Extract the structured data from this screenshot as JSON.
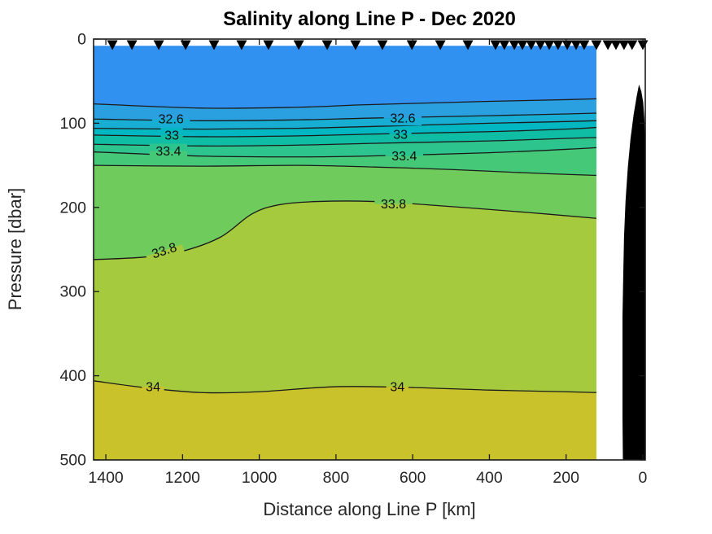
{
  "chart_data": {
    "type": "filled_contour_section",
    "title": "Salinity along Line P - Dec 2020",
    "xlabel": "Distance along Line P [km]",
    "ylabel": "Pressure [dbar]",
    "value_label": "Salinity",
    "x_axis": {
      "tick_labels": [
        "1400",
        "1200",
        "1000",
        "800",
        "600",
        "400",
        "200",
        "0"
      ],
      "tick_values": [
        1400,
        1200,
        1000,
        800,
        600,
        400,
        200,
        0
      ],
      "range": [
        1432,
        -6.4
      ],
      "reversed": true
    },
    "y_axis": {
      "tick_labels": [
        "0",
        "100",
        "200",
        "300",
        "400",
        "500"
      ],
      "tick_values": [
        0,
        100,
        200,
        300,
        400,
        500
      ],
      "range": [
        0,
        500
      ],
      "increasing_down": true
    },
    "fill_x_extent_km": [
      1432,
      121
    ],
    "surface_gap_dbar": 8,
    "contour_levels": [
      {
        "value": 32.4,
        "labeled": false,
        "points": [
          [
            1432,
            77
          ],
          [
            1150,
            82
          ],
          [
            900,
            81
          ],
          [
            720,
            78
          ],
          [
            400,
            74
          ],
          [
            200,
            72
          ],
          [
            121,
            71
          ]
        ]
      },
      {
        "value": 32.6,
        "labeled": true,
        "points": [
          [
            1432,
            95
          ],
          [
            1150,
            97
          ],
          [
            900,
            96
          ],
          [
            720,
            94
          ],
          [
            400,
            91
          ],
          [
            200,
            89
          ],
          [
            121,
            88
          ]
        ]
      },
      {
        "value": 32.8,
        "labeled": false,
        "points": [
          [
            1432,
            106
          ],
          [
            1150,
            107
          ],
          [
            900,
            106
          ],
          [
            720,
            104
          ],
          [
            400,
            100
          ],
          [
            200,
            98
          ],
          [
            121,
            97
          ]
        ]
      },
      {
        "value": 33.0,
        "labeled": true,
        "points": [
          [
            1432,
            114
          ],
          [
            1150,
            116
          ],
          [
            900,
            115
          ],
          [
            720,
            113
          ],
          [
            400,
            110
          ],
          [
            200,
            107
          ],
          [
            121,
            105
          ]
        ]
      },
      {
        "value": 33.2,
        "labeled": false,
        "points": [
          [
            1432,
            125
          ],
          [
            1150,
            127
          ],
          [
            900,
            126
          ],
          [
            720,
            124
          ],
          [
            400,
            121
          ],
          [
            200,
            118
          ],
          [
            121,
            117
          ]
        ]
      },
      {
        "value": 33.4,
        "labeled": true,
        "points": [
          [
            1432,
            134
          ],
          [
            1150,
            139
          ],
          [
            900,
            140
          ],
          [
            720,
            139
          ],
          [
            400,
            135
          ],
          [
            200,
            131
          ],
          [
            121,
            129
          ]
        ]
      },
      {
        "value": 33.6,
        "labeled": false,
        "points": [
          [
            1432,
            150
          ],
          [
            1150,
            151
          ],
          [
            900,
            150
          ],
          [
            700,
            152
          ],
          [
            500,
            155
          ],
          [
            300,
            159
          ],
          [
            121,
            162
          ]
        ]
      },
      {
        "value": 33.8,
        "labeled": true,
        "points": [
          [
            1432,
            262
          ],
          [
            1300,
            259
          ],
          [
            1200,
            252
          ],
          [
            1100,
            235
          ],
          [
            1020,
            208
          ],
          [
            950,
            197
          ],
          [
            850,
            193
          ],
          [
            700,
            193
          ],
          [
            500,
            199
          ],
          [
            300,
            206
          ],
          [
            121,
            213
          ]
        ]
      },
      {
        "value": 34.0,
        "labeled": true,
        "points": [
          [
            1432,
            406
          ],
          [
            1300,
            414
          ],
          [
            1150,
            420
          ],
          [
            1000,
            419
          ],
          [
            800,
            413
          ],
          [
            600,
            414
          ],
          [
            400,
            417
          ],
          [
            200,
            419
          ],
          [
            121,
            420
          ]
        ]
      }
    ],
    "bands": [
      {
        "range": "<32.4",
        "color": "#3191F1"
      },
      {
        "range": "32.4-32.6",
        "color": "#2BA0E1"
      },
      {
        "range": "32.6-32.8",
        "color": "#18ADD2"
      },
      {
        "range": "32.8-33.0",
        "color": "#02B6C2"
      },
      {
        "range": "33.0-33.2",
        "color": "#0FBDA5"
      },
      {
        "range": "33.2-33.4",
        "color": "#2EC48D"
      },
      {
        "range": "33.4-33.6",
        "color": "#45C978"
      },
      {
        "range": "33.6-33.8",
        "color": "#6FCB5C"
      },
      {
        "range": "33.8-34.0",
        "color": "#A5CA3E"
      },
      {
        "range": ">34.0",
        "color": "#C9C22A"
      }
    ],
    "contour_labels": [
      {
        "text": "32.6",
        "km": 1230,
        "dbar": 95,
        "rot": 0,
        "above": "#2BA0E1",
        "below": "#18ADD2"
      },
      {
        "text": "32.6",
        "km": 626,
        "dbar": 94,
        "rot": 0,
        "above": "#2BA0E1",
        "below": "#18ADD2"
      },
      {
        "text": "33",
        "km": 1228,
        "dbar": 114,
        "rot": 0,
        "above": "#02B6C2",
        "below": "#0FBDA5"
      },
      {
        "text": "33",
        "km": 632,
        "dbar": 113,
        "rot": 0,
        "above": "#02B6C2",
        "below": "#0FBDA5"
      },
      {
        "text": "33.4",
        "km": 1237,
        "dbar": 133,
        "rot": 0,
        "above": "#2EC48D",
        "below": "#45C978"
      },
      {
        "text": "33.4",
        "km": 622,
        "dbar": 139,
        "rot": 0,
        "above": "#2EC48D",
        "below": "#45C978"
      },
      {
        "text": "33.8",
        "km": 1248,
        "dbar": 251,
        "rot": -18,
        "above": "#6FCB5C",
        "below": "#A5CA3E"
      },
      {
        "text": "33.8",
        "km": 650,
        "dbar": 196,
        "rot": 0,
        "above": "#6FCB5C",
        "below": "#A5CA3E"
      },
      {
        "text": "34",
        "km": 1277,
        "dbar": 413,
        "rot": 0,
        "above": "#A5CA3E",
        "below": "#C9C22A"
      },
      {
        "text": "34",
        "km": 640,
        "dbar": 413,
        "rot": 0,
        "above": "#A5CA3E",
        "below": "#C9C22A"
      }
    ],
    "stations_km": [
      1383,
      1332,
      1262,
      1192,
      1118,
      1046,
      976,
      897,
      823,
      749,
      679,
      602,
      528,
      456,
      384,
      361,
      335,
      314,
      291,
      267,
      244,
      221,
      197,
      174,
      153,
      121,
      91,
      70,
      49,
      28,
      0
    ],
    "bathymetry": {
      "color": "#000000",
      "points_km_dbar": [
        [
          10,
          54
        ],
        [
          16,
          68
        ],
        [
          24,
          90
        ],
        [
          32,
          118
        ],
        [
          39,
          152
        ],
        [
          45,
          192
        ],
        [
          49,
          235
        ],
        [
          51,
          280
        ],
        [
          53,
          330
        ],
        [
          53,
          390
        ],
        [
          53,
          450
        ],
        [
          52,
          500
        ],
        [
          -6,
          500
        ],
        [
          -6,
          120
        ],
        [
          -4,
          95
        ],
        [
          -1,
          75
        ],
        [
          4,
          62
        ],
        [
          10,
          54
        ]
      ]
    },
    "axis_color": "#262626",
    "line_color": "#1a1a1a",
    "marker_color": "#000000",
    "background": "#ffffff"
  }
}
